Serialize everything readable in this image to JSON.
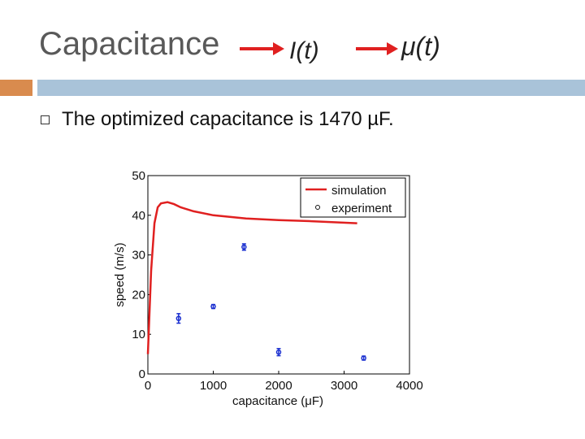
{
  "slide": {
    "title": "Capacitance",
    "formula_left": "I(t)",
    "formula_right": "μ(t)",
    "bullet": "The optimized capacitance is 1470 µF.",
    "colors": {
      "title": "#595959",
      "arrow": "#e02020",
      "band_orange": "#d98b4e",
      "band_blue": "#a9c3d9"
    }
  },
  "chart_data": {
    "type": "line",
    "xlabel": "capacitance (μF)",
    "ylabel": "speed (m/s)",
    "xlim": [
      0,
      4000
    ],
    "ylim": [
      0,
      50
    ],
    "x_ticks": [
      0,
      1000,
      2000,
      3000,
      4000
    ],
    "y_ticks": [
      0,
      10,
      20,
      30,
      40,
      50
    ],
    "legend_position": "top-right",
    "series": [
      {
        "name": "simulation",
        "kind": "line",
        "color": "#e02020",
        "x": [
          0,
          50,
          100,
          150,
          200,
          300,
          400,
          500,
          700,
          1000,
          1500,
          2000,
          2500,
          3200
        ],
        "y": [
          5,
          26,
          38,
          42,
          43,
          43.3,
          42.8,
          42,
          41,
          40,
          39.2,
          38.8,
          38.5,
          38
        ]
      },
      {
        "name": "experiment",
        "kind": "scatter",
        "color": "#1a2fd0",
        "x": [
          470,
          1000,
          1470,
          2000,
          3300
        ],
        "y": [
          14,
          17,
          32,
          5.5,
          4
        ],
        "err": [
          1.2,
          0.5,
          0.8,
          0.9,
          0.5
        ]
      }
    ]
  }
}
